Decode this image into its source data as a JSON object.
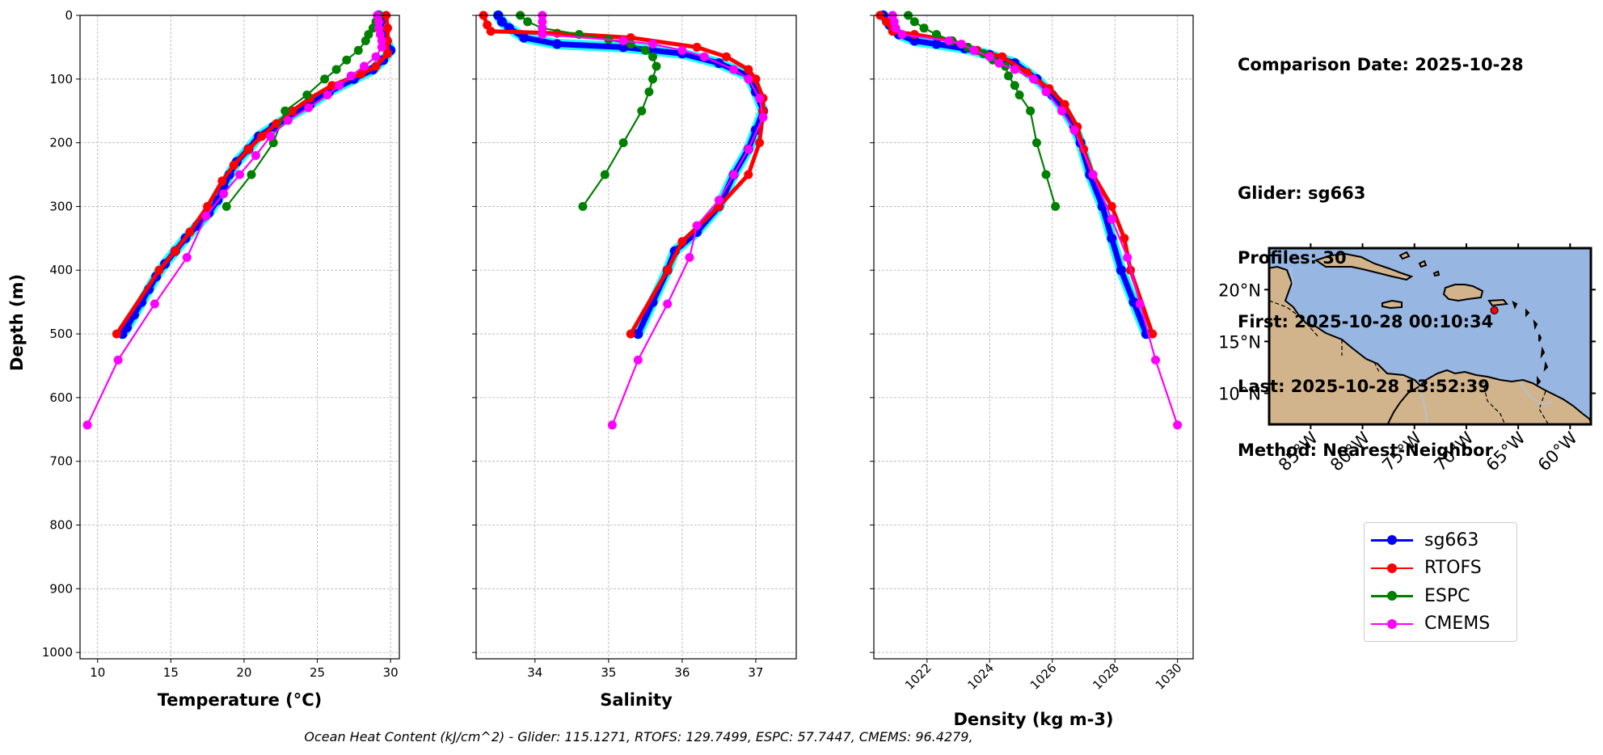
{
  "info": {
    "comparison_date": "Comparison Date: 2025-10-28",
    "glider": "Glider: sg663",
    "profiles": "Profiles: 30",
    "first": "First: 2025-10-28 00:10:34",
    "last": "Last: 2025-10-28 13:52:39",
    "method": "Method: Nearest-Neighbor"
  },
  "footer": "Ocean Heat Content (kJ/cm^2) - Glider: 115.1271,  RTOFS: 129.7499,  ESPC: 57.7447,  CMEMS: 96.4279,",
  "legend": [
    {
      "name": "sg663",
      "color": "#0000ff"
    },
    {
      "name": "RTOFS",
      "color": "#ff0000"
    },
    {
      "name": "ESPC",
      "color": "#008000"
    },
    {
      "name": "CMEMS",
      "color": "#ff00ff"
    }
  ],
  "map": {
    "lat_labels": [
      "20°N",
      "15°N",
      "10°N"
    ],
    "lon_labels": [
      "85°W",
      "80°W",
      "75°W",
      "70°W",
      "65°W",
      "60°W"
    ],
    "extent": {
      "lon": [
        -89,
        -58
      ],
      "lat": [
        7,
        24
      ]
    },
    "glider_position": {
      "lon": -67.3,
      "lat": 18.0
    },
    "colors": {
      "ocean": "#97b6e1",
      "land": "#d2b48c",
      "marker": "#ff0000"
    }
  },
  "chart_data": [
    {
      "type": "line",
      "xlabel": "Temperature (°C)",
      "ylabel": "Depth (m)",
      "xlim": [
        8.8,
        30.6
      ],
      "ylim": [
        1010,
        0
      ],
      "xticks": [
        10,
        15,
        20,
        25,
        30
      ],
      "yticks": [
        0,
        100,
        200,
        300,
        400,
        500,
        600,
        700,
        800,
        900,
        1000
      ],
      "grid": true,
      "series": [
        {
          "name": "sg663",
          "color": "#0000ff",
          "envelope_color": "#00ffff",
          "points": [
            [
              29.2,
              0
            ],
            [
              29.3,
              10
            ],
            [
              29.5,
              25
            ],
            [
              29.7,
              40
            ],
            [
              30.0,
              55
            ],
            [
              29.5,
              70
            ],
            [
              28.8,
              85
            ],
            [
              27.5,
              100
            ],
            [
              25.8,
              120
            ],
            [
              24.5,
              140
            ],
            [
              23.0,
              160
            ],
            [
              22.0,
              175
            ],
            [
              21.0,
              190
            ],
            [
              20.3,
              210
            ],
            [
              19.5,
              230
            ],
            [
              19.0,
              250
            ],
            [
              18.6,
              270
            ],
            [
              18.2,
              290
            ],
            [
              17.6,
              310
            ],
            [
              16.8,
              330
            ],
            [
              16.0,
              350
            ],
            [
              15.3,
              370
            ],
            [
              14.6,
              390
            ],
            [
              14.0,
              410
            ],
            [
              13.5,
              430
            ],
            [
              13.0,
              450
            ],
            [
              12.5,
              470
            ],
            [
              12.0,
              490
            ],
            [
              11.7,
              500
            ]
          ]
        },
        {
          "name": "RTOFS",
          "color": "#ff0000",
          "points": [
            [
              29.7,
              0
            ],
            [
              29.8,
              20
            ],
            [
              29.8,
              40
            ],
            [
              29.8,
              60
            ],
            [
              29.0,
              80
            ],
            [
              28.0,
              92
            ],
            [
              26.0,
              110
            ],
            [
              24.5,
              130
            ],
            [
              23.3,
              150
            ],
            [
              22.2,
              170
            ],
            [
              21.2,
              190
            ],
            [
              20.3,
              210
            ],
            [
              19.3,
              235
            ],
            [
              18.5,
              260
            ],
            [
              17.5,
              300
            ],
            [
              16.3,
              340
            ],
            [
              15.3,
              370
            ],
            [
              14.2,
              400
            ],
            [
              11.3,
              500
            ]
          ]
        },
        {
          "name": "ESPC",
          "color": "#008000",
          "points": [
            [
              29.2,
              0
            ],
            [
              29.0,
              10
            ],
            [
              28.8,
              20
            ],
            [
              28.5,
              30
            ],
            [
              28.3,
              40
            ],
            [
              27.8,
              55
            ],
            [
              27.0,
              70
            ],
            [
              26.3,
              85
            ],
            [
              25.5,
              100
            ],
            [
              24.3,
              125
            ],
            [
              22.8,
              150
            ],
            [
              22.0,
              200
            ],
            [
              20.5,
              250
            ],
            [
              18.8,
              300
            ]
          ]
        },
        {
          "name": "CMEMS",
          "color": "#ff00ff",
          "points": [
            [
              29.1,
              0
            ],
            [
              29.2,
              10
            ],
            [
              29.2,
              20
            ],
            [
              29.3,
              30
            ],
            [
              29.4,
              40
            ],
            [
              29.4,
              50
            ],
            [
              29.0,
              65
            ],
            [
              28.2,
              80
            ],
            [
              27.3,
              95
            ],
            [
              26.5,
              110
            ],
            [
              25.7,
              125
            ],
            [
              24.4,
              145
            ],
            [
              23.0,
              165
            ],
            [
              21.8,
              190
            ],
            [
              20.8,
              220
            ],
            [
              19.7,
              250
            ],
            [
              18.6,
              280
            ],
            [
              17.4,
              315
            ],
            [
              16.1,
              380
            ],
            [
              13.9,
              453
            ],
            [
              11.4,
              541
            ],
            [
              9.3,
              643
            ]
          ]
        }
      ]
    },
    {
      "type": "line",
      "xlabel": "Salinity",
      "xlim": [
        33.2,
        37.55
      ],
      "ylim": [
        1010,
        0
      ],
      "xticks": [
        34,
        35,
        36,
        37
      ],
      "grid": true,
      "series": [
        {
          "name": "sg663",
          "color": "#0000ff",
          "envelope_color": "#00ffff",
          "points": [
            [
              33.5,
              0
            ],
            [
              33.55,
              10
            ],
            [
              33.65,
              20
            ],
            [
              33.85,
              35
            ],
            [
              34.3,
              45
            ],
            [
              35.2,
              50
            ],
            [
              36.0,
              60
            ],
            [
              36.5,
              75
            ],
            [
              36.9,
              95
            ],
            [
              37.0,
              120
            ],
            [
              37.1,
              150
            ],
            [
              37.0,
              180
            ],
            [
              36.9,
              210
            ],
            [
              36.7,
              250
            ],
            [
              36.5,
              300
            ],
            [
              36.2,
              340
            ],
            [
              35.9,
              370
            ],
            [
              35.8,
              400
            ],
            [
              35.6,
              450
            ],
            [
              35.4,
              500
            ]
          ]
        },
        {
          "name": "RTOFS",
          "color": "#ff0000",
          "points": [
            [
              33.3,
              0
            ],
            [
              33.35,
              15
            ],
            [
              33.4,
              25
            ],
            [
              34.3,
              28
            ],
            [
              35.3,
              35
            ],
            [
              36.2,
              50
            ],
            [
              36.6,
              65
            ],
            [
              36.9,
              85
            ],
            [
              37.0,
              100
            ],
            [
              37.1,
              130
            ],
            [
              37.1,
              150
            ],
            [
              37.05,
              200
            ],
            [
              36.9,
              250
            ],
            [
              36.5,
              300
            ],
            [
              36.0,
              355
            ],
            [
              35.8,
              400
            ],
            [
              35.3,
              500
            ]
          ]
        },
        {
          "name": "ESPC",
          "color": "#008000",
          "points": [
            [
              33.8,
              0
            ],
            [
              33.9,
              10
            ],
            [
              34.1,
              20
            ],
            [
              34.6,
              30
            ],
            [
              35.0,
              38
            ],
            [
              35.3,
              45
            ],
            [
              35.5,
              55
            ],
            [
              35.6,
              65
            ],
            [
              35.65,
              80
            ],
            [
              35.6,
              100
            ],
            [
              35.55,
              120
            ],
            [
              35.45,
              150
            ],
            [
              35.2,
              200
            ],
            [
              34.95,
              250
            ],
            [
              34.65,
              300
            ]
          ]
        },
        {
          "name": "CMEMS",
          "color": "#ff00ff",
          "points": [
            [
              34.1,
              0
            ],
            [
              34.1,
              10
            ],
            [
              34.1,
              20
            ],
            [
              34.1,
              30
            ],
            [
              35.2,
              40
            ],
            [
              35.6,
              45
            ],
            [
              36.0,
              55
            ],
            [
              36.3,
              65
            ],
            [
              36.7,
              85
            ],
            [
              36.9,
              100
            ],
            [
              37.05,
              130
            ],
            [
              37.1,
              160
            ],
            [
              36.9,
              210
            ],
            [
              36.7,
              250
            ],
            [
              36.5,
              290
            ],
            [
              36.2,
              330
            ],
            [
              36.1,
              380
            ],
            [
              35.8,
              453
            ],
            [
              35.4,
              541
            ],
            [
              35.05,
              643
            ]
          ]
        }
      ]
    },
    {
      "type": "line",
      "xlabel": "Density (kg m-3)",
      "xlim": [
        1020.3,
        1030.5
      ],
      "ylim": [
        1010,
        0
      ],
      "xticks": [
        1022,
        1024,
        1026,
        1028,
        1030
      ],
      "grid": true,
      "series": [
        {
          "name": "sg663",
          "color": "#0000ff",
          "envelope_color": "#00ffff",
          "points": [
            [
              1020.6,
              0
            ],
            [
              1020.8,
              15
            ],
            [
              1021.1,
              30
            ],
            [
              1021.6,
              40
            ],
            [
              1022.3,
              45
            ],
            [
              1023.2,
              52
            ],
            [
              1024.0,
              62
            ],
            [
              1024.8,
              75
            ],
            [
              1025.5,
              100
            ],
            [
              1026.0,
              125
            ],
            [
              1026.4,
              150
            ],
            [
              1026.7,
              175
            ],
            [
              1026.9,
              200
            ],
            [
              1027.2,
              250
            ],
            [
              1027.6,
              300
            ],
            [
              1027.9,
              350
            ],
            [
              1028.2,
              400
            ],
            [
              1028.6,
              450
            ],
            [
              1029.0,
              500
            ]
          ]
        },
        {
          "name": "RTOFS",
          "color": "#ff0000",
          "points": [
            [
              1020.5,
              0
            ],
            [
              1020.7,
              10
            ],
            [
              1020.9,
              25
            ],
            [
              1021.6,
              30
            ],
            [
              1022.8,
              40
            ],
            [
              1023.6,
              55
            ],
            [
              1024.4,
              65
            ],
            [
              1025.2,
              90
            ],
            [
              1025.9,
              115
            ],
            [
              1026.4,
              140
            ],
            [
              1026.8,
              175
            ],
            [
              1027.0,
              210
            ],
            [
              1027.3,
              250
            ],
            [
              1027.9,
              300
            ],
            [
              1028.3,
              350
            ],
            [
              1028.5,
              400
            ],
            [
              1029.2,
              500
            ]
          ]
        },
        {
          "name": "ESPC",
          "color": "#008000",
          "points": [
            [
              1021.4,
              0
            ],
            [
              1021.6,
              10
            ],
            [
              1021.9,
              20
            ],
            [
              1022.3,
              30
            ],
            [
              1022.8,
              40
            ],
            [
              1023.3,
              50
            ],
            [
              1023.8,
              60
            ],
            [
              1024.1,
              70
            ],
            [
              1024.5,
              80
            ],
            [
              1024.6,
              95
            ],
            [
              1024.8,
              110
            ],
            [
              1024.95,
              125
            ],
            [
              1025.3,
              150
            ],
            [
              1025.5,
              200
            ],
            [
              1025.8,
              250
            ],
            [
              1026.1,
              300
            ]
          ]
        },
        {
          "name": "CMEMS",
          "color": "#ff00ff",
          "points": [
            [
              1020.9,
              0
            ],
            [
              1020.95,
              10
            ],
            [
              1021.0,
              20
            ],
            [
              1021.2,
              30
            ],
            [
              1022.7,
              40
            ],
            [
              1023.1,
              45
            ],
            [
              1023.5,
              55
            ],
            [
              1024.0,
              65
            ],
            [
              1024.3,
              75
            ],
            [
              1024.8,
              85
            ],
            [
              1025.4,
              100
            ],
            [
              1025.8,
              120
            ],
            [
              1026.3,
              150
            ],
            [
              1026.7,
              180
            ],
            [
              1027.3,
              250
            ],
            [
              1027.9,
              320
            ],
            [
              1028.4,
              380
            ],
            [
              1028.8,
              453
            ],
            [
              1029.3,
              541
            ],
            [
              1030.0,
              643
            ]
          ]
        }
      ]
    }
  ]
}
